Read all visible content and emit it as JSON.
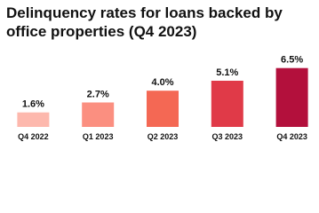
{
  "chart_data": {
    "type": "bar",
    "title": "Delinquency rates for loans backed by office properties (Q4 2023)",
    "categories": [
      "Q4 2022",
      "Q1 2023",
      "Q2 2023",
      "Q3 2023",
      "Q4 2023"
    ],
    "values": [
      1.6,
      2.7,
      4.0,
      5.1,
      6.5
    ],
    "value_labels": [
      "1.6%",
      "2.7%",
      "4.0%",
      "5.1%",
      "6.5%"
    ],
    "colors": [
      "#fdb8ad",
      "#fb8f80",
      "#f46854",
      "#e03a48",
      "#b3103c"
    ]
  }
}
